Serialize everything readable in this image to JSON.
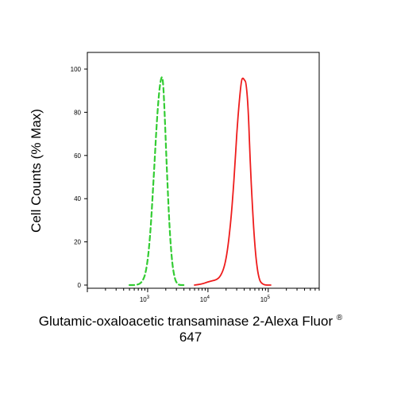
{
  "chart_data": {
    "type": "line",
    "xlabel": "Glutamic-oxaloacetic transaminase 2-Alexa Fluor",
    "xlabel_superscript": "®",
    "xlabel_line2": "647",
    "ylabel": "Cell Counts (% Max)",
    "x_scale": "log",
    "xlim": [
      100,
      700000
    ],
    "ylim": [
      0,
      100
    ],
    "y_ticks": [
      "0",
      "20",
      "40",
      "60",
      "80",
      "100"
    ],
    "x_ticks": [
      {
        "base": "10",
        "exp": "3",
        "value": 1000
      },
      {
        "base": "10",
        "exp": "4",
        "value": 10000
      },
      {
        "base": "10",
        "exp": "5",
        "value": 100000
      }
    ],
    "grid": false,
    "series": [
      {
        "style": "dashed",
        "color": "#33cc33",
        "x": [
          500,
          650,
          800,
          950,
          1100,
          1250,
          1400,
          1550,
          1700,
          1800,
          1900,
          2050,
          2250,
          2500,
          2800,
          3100,
          3400,
          4000
        ],
        "y": [
          0,
          0,
          1,
          6,
          22,
          48,
          73,
          90,
          97,
          95,
          82,
          58,
          32,
          12,
          3,
          0.5,
          0,
          0
        ]
      },
      {
        "style": "solid",
        "color": "#ee1c1c",
        "x": [
          6000,
          8000,
          10000,
          12000,
          14000,
          16000,
          18000,
          20000,
          22000,
          24000,
          26000,
          28000,
          30000,
          33000,
          36000,
          38000,
          40000,
          43000,
          47000,
          50000,
          55000,
          60000,
          66000,
          72000,
          80000,
          90000,
          110000
        ],
        "y": [
          0,
          0.5,
          1.5,
          2,
          2.5,
          4,
          7,
          12,
          20,
          30,
          42,
          55,
          70,
          85,
          95,
          96,
          95,
          94,
          80,
          58,
          35,
          18,
          7,
          2,
          0.5,
          0,
          0
        ]
      }
    ]
  }
}
